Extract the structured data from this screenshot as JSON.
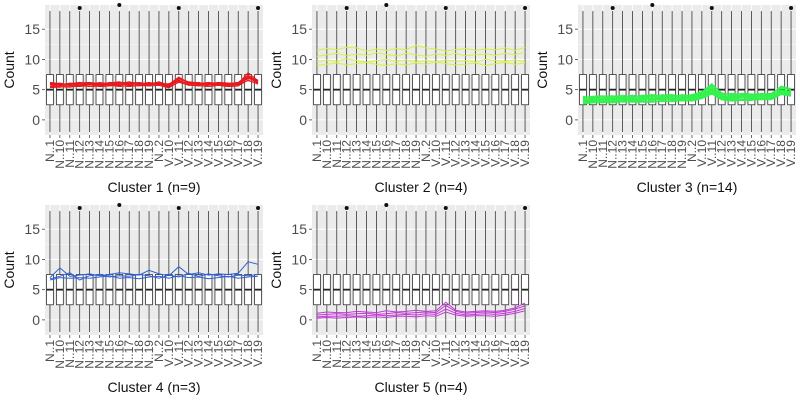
{
  "chart_data": [
    {
      "type": "box+line",
      "title": "Cluster 1 (n=9)",
      "ylabel": "Count",
      "ylim": [
        -2.5,
        19
      ],
      "yticks": [
        0,
        5,
        10,
        15
      ],
      "x_tick_labels": [
        "N..1",
        "N..10",
        "N..11",
        "N..12",
        "N..13",
        "N..14",
        "N..15",
        "N..16",
        "N..17",
        "N..18",
        "N..19",
        "N..2",
        "V..10",
        "V..11",
        "V..12",
        "V..13",
        "V..14",
        "V..15",
        "V..16",
        "V..17",
        "V..18",
        "V..19"
      ],
      "series_color": "#e8191c",
      "series": [
        {
          "values": [
            5.8,
            5.9,
            5.7,
            5.9,
            6.1,
            6.0,
            5.9,
            6.2,
            6.0,
            5.8,
            5.9,
            6.3,
            5.7,
            6.8,
            6.2,
            6.0,
            5.9,
            6.0,
            5.8,
            6.2,
            7.4,
            6.4
          ]
        },
        {
          "values": [
            5.5,
            5.6,
            5.8,
            5.6,
            5.9,
            5.7,
            6.1,
            5.8,
            6.0,
            6.2,
            5.9,
            6.0,
            5.6,
            6.5,
            6.0,
            5.8,
            6.1,
            5.9,
            6.0,
            5.7,
            7.0,
            6.1
          ]
        },
        {
          "values": [
            6.0,
            5.7,
            6.1,
            5.9,
            5.8,
            6.2,
            5.9,
            6.0,
            6.3,
            5.9,
            6.1,
            5.8,
            5.9,
            7.0,
            6.1,
            6.2,
            5.8,
            6.1,
            5.9,
            6.0,
            6.8,
            6.6
          ]
        },
        {
          "values": [
            5.3,
            5.5,
            5.4,
            5.7,
            5.5,
            5.6,
            5.8,
            5.5,
            5.7,
            5.6,
            5.8,
            5.9,
            5.4,
            6.2,
            5.8,
            5.6,
            5.7,
            5.9,
            5.6,
            5.8,
            6.5,
            6.0
          ]
        },
        {
          "values": [
            6.2,
            6.0,
            5.9,
            6.1,
            6.2,
            6.0,
            6.1,
            6.3,
            5.9,
            6.1,
            6.0,
            6.2,
            5.8,
            6.9,
            6.3,
            6.1,
            6.0,
            6.2,
            6.1,
            6.0,
            7.8,
            6.5
          ]
        },
        {
          "values": [
            5.6,
            5.8,
            5.9,
            5.7,
            6.0,
            5.9,
            5.7,
            5.9,
            5.8,
            6.0,
            5.7,
            6.1,
            5.5,
            6.6,
            5.9,
            5.9,
            5.8,
            5.8,
            5.9,
            5.9,
            7.1,
            6.3
          ]
        },
        {
          "values": [
            5.9,
            6.1,
            5.7,
            6.0,
            5.7,
            6.1,
            6.0,
            5.8,
            6.1,
            5.9,
            6.2,
            5.9,
            6.0,
            6.4,
            6.0,
            6.0,
            6.2,
            6.0,
            5.7,
            6.1,
            6.9,
            6.2
          ]
        },
        {
          "values": [
            5.4,
            5.4,
            5.6,
            5.5,
            5.8,
            5.5,
            5.6,
            5.7,
            5.5,
            5.7,
            5.6,
            5.7,
            5.3,
            6.3,
            5.7,
            5.7,
            5.5,
            5.7,
            5.5,
            5.6,
            6.6,
            5.9
          ]
        },
        {
          "values": [
            6.1,
            5.9,
            6.0,
            6.2,
            6.0,
            5.8,
            6.2,
            6.1,
            6.2,
            6.1,
            5.8,
            6.1,
            5.8,
            7.1,
            6.1,
            5.8,
            6.0,
            6.1,
            6.0,
            6.2,
            7.2,
            6.4
          ]
        }
      ]
    },
    {
      "type": "box+line",
      "title": "Cluster 2 (n=4)",
      "ylabel": "Count",
      "ylim": [
        -2.5,
        19
      ],
      "yticks": [
        0,
        5,
        10,
        15
      ],
      "x_tick_labels": [
        "N..1",
        "N..10",
        "N..11",
        "N..12",
        "N..13",
        "N..14",
        "N..15",
        "N..16",
        "N..17",
        "N..18",
        "N..19",
        "N..2",
        "V..10",
        "V..11",
        "V..12",
        "V..13",
        "V..14",
        "V..15",
        "V..16",
        "V..17",
        "V..18",
        "V..19"
      ],
      "series_color": "#d8f23a",
      "series": [
        {
          "values": [
            11.5,
            11.8,
            11.6,
            12.0,
            11.9,
            11.4,
            11.7,
            11.5,
            11.8,
            11.6,
            12.3,
            11.9,
            11.7,
            11.4,
            11.6,
            11.8,
            11.5,
            11.7,
            11.6,
            11.9,
            11.5,
            12.0
          ]
        },
        {
          "values": [
            10.5,
            10.8,
            11.0,
            10.6,
            10.9,
            10.7,
            11.1,
            10.8,
            10.6,
            11.0,
            10.8,
            10.5,
            10.9,
            10.7,
            11.0,
            10.6,
            10.8,
            10.9,
            10.7,
            11.0,
            10.8,
            11.2
          ]
        },
        {
          "values": [
            9.6,
            9.9,
            9.7,
            10.1,
            9.8,
            9.5,
            9.8,
            10.0,
            9.7,
            9.9,
            9.6,
            9.8,
            9.5,
            9.9,
            9.7,
            9.8,
            9.6,
            10.0,
            9.8,
            9.7,
            9.9,
            9.6
          ]
        },
        {
          "values": [
            9.0,
            9.2,
            9.4,
            9.1,
            9.3,
            9.5,
            9.2,
            9.0,
            9.3,
            9.1,
            9.4,
            9.2,
            9.6,
            9.3,
            9.1,
            9.2,
            9.4,
            9.0,
            9.3,
            9.5,
            9.2,
            9.4
          ]
        }
      ]
    },
    {
      "type": "box+line",
      "title": "Cluster 3 (n=14)",
      "ylabel": "Count",
      "ylim": [
        -2.5,
        19
      ],
      "yticks": [
        0,
        5,
        10,
        15
      ],
      "x_tick_labels": [
        "N..1",
        "N..10",
        "N..11",
        "N..12",
        "N..13",
        "N..14",
        "N..15",
        "N..16",
        "N..17",
        "N..18",
        "N..19",
        "N..2",
        "V..10",
        "V..11",
        "V..12",
        "V..13",
        "V..14",
        "V..15",
        "V..16",
        "V..17",
        "V..18",
        "V..19"
      ],
      "series_color": "#33f24d",
      "series": [
        {
          "values": [
            3.2,
            3.5,
            3.3,
            3.7,
            3.6,
            3.9,
            3.8,
            4.1,
            3.7,
            4.0,
            3.6,
            3.9,
            4.3,
            5.2,
            4.0,
            3.8,
            4.1,
            3.9,
            4.2,
            4.0,
            4.8,
            4.6
          ]
        },
        {
          "values": [
            2.8,
            3.0,
            3.2,
            3.0,
            3.3,
            3.1,
            3.5,
            3.2,
            3.6,
            3.3,
            3.5,
            3.4,
            3.8,
            4.6,
            3.6,
            3.4,
            3.7,
            3.5,
            3.8,
            3.6,
            4.5,
            4.2
          ]
        },
        {
          "values": [
            3.6,
            3.8,
            3.5,
            3.9,
            3.7,
            4.0,
            3.9,
            3.7,
            4.2,
            3.9,
            4.1,
            4.0,
            4.5,
            5.6,
            4.3,
            4.1,
            4.0,
            4.2,
            4.1,
            4.3,
            5.2,
            5.0
          ]
        },
        {
          "values": [
            3.0,
            3.1,
            3.4,
            3.2,
            3.0,
            3.4,
            3.2,
            3.5,
            3.3,
            3.6,
            3.4,
            3.7,
            4.0,
            4.9,
            3.8,
            3.6,
            3.9,
            3.7,
            3.9,
            3.8,
            4.7,
            4.4
          ]
        },
        {
          "values": [
            3.9,
            3.6,
            3.8,
            3.5,
            3.9,
            3.7,
            4.1,
            3.9,
            4.0,
            3.8,
            4.2,
            3.9,
            4.4,
            6.0,
            4.1,
            4.4,
            4.2,
            4.0,
            4.3,
            4.1,
            5.5,
            4.9
          ]
        },
        {
          "values": [
            3.4,
            3.3,
            3.0,
            3.4,
            3.2,
            3.5,
            3.3,
            3.6,
            3.4,
            3.7,
            3.5,
            3.6,
            4.1,
            5.0,
            3.9,
            3.7,
            3.8,
            3.9,
            3.7,
            4.0,
            4.9,
            4.5
          ]
        },
        {
          "values": [
            2.6,
            2.9,
            2.8,
            3.1,
            2.9,
            3.0,
            3.1,
            3.0,
            3.2,
            3.1,
            3.3,
            3.2,
            3.6,
            4.4,
            3.5,
            3.3,
            3.4,
            3.3,
            3.6,
            3.4,
            4.3,
            4.0
          ]
        },
        {
          "values": [
            3.7,
            3.9,
            4.0,
            3.8,
            4.1,
            3.8,
            4.0,
            4.2,
            3.9,
            4.1,
            3.9,
            4.2,
            4.6,
            5.8,
            4.4,
            4.2,
            4.3,
            4.1,
            4.4,
            4.2,
            5.6,
            5.1
          ]
        },
        {
          "values": [
            3.1,
            3.3,
            3.1,
            3.3,
            3.4,
            3.2,
            3.4,
            3.3,
            3.5,
            3.4,
            3.6,
            3.5,
            3.9,
            4.7,
            3.7,
            3.5,
            3.6,
            3.6,
            3.5,
            3.7,
            4.6,
            4.3
          ]
        },
        {
          "values": [
            3.5,
            3.4,
            3.6,
            3.6,
            3.5,
            3.6,
            3.6,
            3.8,
            3.6,
            3.5,
            3.7,
            3.8,
            4.2,
            5.4,
            4.0,
            3.9,
            4.0,
            3.8,
            4.0,
            3.9,
            5.0,
            4.7
          ]
        },
        {
          "values": [
            2.9,
            3.2,
            3.0,
            2.9,
            3.1,
            3.3,
            3.0,
            3.1,
            3.0,
            3.2,
            3.1,
            3.3,
            3.7,
            4.5,
            3.4,
            3.2,
            3.3,
            3.4,
            3.3,
            3.5,
            4.4,
            4.1
          ]
        },
        {
          "values": [
            3.8,
            3.7,
            3.9,
            4.0,
            3.8,
            4.1,
            3.7,
            4.0,
            4.1,
            4.2,
            3.8,
            4.1,
            4.7,
            5.9,
            4.5,
            4.0,
            4.4,
            4.3,
            4.2,
            4.4,
            5.4,
            5.2
          ]
        },
        {
          "values": [
            3.3,
            3.6,
            3.4,
            3.5,
            3.7,
            3.4,
            3.6,
            3.4,
            3.8,
            3.6,
            3.4,
            3.7,
            4.0,
            5.1,
            3.8,
            3.8,
            3.9,
            3.6,
            3.9,
            3.8,
            4.8,
            4.5
          ]
        },
        {
          "values": [
            2.7,
            2.8,
            2.9,
            2.8,
            3.0,
            2.9,
            2.9,
            2.9,
            3.1,
            3.0,
            3.2,
            3.1,
            3.5,
            4.3,
            3.3,
            3.1,
            3.2,
            3.2,
            3.4,
            3.3,
            4.2,
            3.9
          ]
        }
      ]
    },
    {
      "type": "box+line",
      "title": "Cluster 4 (n=3)",
      "ylabel": "Count",
      "ylim": [
        -2.5,
        19
      ],
      "yticks": [
        0,
        5,
        10,
        15
      ],
      "x_tick_labels": [
        "N..1",
        "N..10",
        "N..11",
        "N..12",
        "N..13",
        "N..14",
        "N..15",
        "N..16",
        "N..17",
        "N..18",
        "N..19",
        "N..2",
        "V..10",
        "V..11",
        "V..12",
        "V..13",
        "V..14",
        "V..15",
        "V..16",
        "V..17",
        "V..18",
        "V..19"
      ],
      "series_color": "#2e5fd9",
      "series": [
        {
          "values": [
            7.0,
            8.6,
            7.2,
            7.4,
            7.6,
            7.3,
            7.5,
            7.8,
            7.6,
            7.4,
            8.2,
            7.6,
            7.3,
            8.8,
            7.5,
            7.8,
            7.4,
            7.6,
            7.5,
            7.7,
            9.6,
            9.2
          ]
        },
        {
          "values": [
            6.8,
            7.2,
            7.8,
            6.6,
            7.3,
            7.5,
            7.1,
            7.3,
            7.2,
            7.5,
            7.3,
            6.9,
            7.4,
            7.1,
            7.7,
            7.2,
            7.6,
            7.3,
            7.1,
            7.4,
            7.3,
            7.5
          ]
        },
        {
          "values": [
            6.6,
            7.0,
            6.9,
            7.0,
            6.9,
            7.1,
            7.3,
            6.9,
            7.0,
            6.8,
            7.1,
            7.2,
            6.9,
            7.3,
            7.0,
            7.1,
            6.8,
            7.0,
            7.2,
            6.9,
            7.1,
            7.2
          ]
        }
      ]
    },
    {
      "type": "box+line",
      "title": "Cluster 5 (n=4)",
      "ylabel": "Count",
      "ylim": [
        -2.5,
        19
      ],
      "yticks": [
        0,
        5,
        10,
        15
      ],
      "x_tick_labels": [
        "N..1",
        "N..10",
        "N..11",
        "N..12",
        "N..13",
        "N..14",
        "N..15",
        "N..16",
        "N..17",
        "N..18",
        "N..19",
        "N..2",
        "V..10",
        "V..11",
        "V..12",
        "V..13",
        "V..14",
        "V..15",
        "V..16",
        "V..17",
        "V..18",
        "V..19"
      ],
      "series_color": "#c23ad6",
      "series": [
        {
          "values": [
            1.1,
            1.3,
            1.2,
            1.2,
            1.4,
            1.3,
            1.2,
            1.5,
            1.3,
            1.4,
            1.6,
            1.4,
            1.5,
            2.9,
            1.6,
            1.3,
            1.4,
            1.5,
            1.4,
            1.6,
            2.0,
            2.8
          ]
        },
        {
          "values": [
            0.8,
            0.9,
            1.0,
            0.9,
            1.0,
            1.1,
            0.9,
            1.0,
            1.2,
            1.1,
            1.2,
            1.3,
            1.2,
            2.4,
            1.4,
            1.1,
            1.2,
            1.3,
            1.2,
            1.4,
            1.8,
            2.3
          ]
        },
        {
          "values": [
            0.5,
            0.6,
            0.6,
            0.7,
            0.6,
            0.7,
            0.8,
            0.7,
            0.8,
            0.9,
            0.8,
            1.0,
            0.9,
            1.8,
            1.1,
            0.8,
            0.9,
            1.0,
            0.9,
            1.1,
            1.4,
            1.9
          ]
        },
        {
          "values": [
            0.3,
            0.4,
            0.3,
            0.4,
            0.5,
            0.4,
            0.5,
            0.4,
            0.6,
            0.6,
            0.5,
            0.7,
            0.6,
            1.3,
            0.8,
            0.6,
            0.7,
            0.7,
            0.6,
            0.8,
            1.1,
            1.5
          ]
        }
      ]
    }
  ],
  "boxplot_summary": {
    "whisker_low": -2.0,
    "q1": 2.5,
    "median": 5.0,
    "q3": 7.5,
    "whisker_high": 18.0,
    "outliers": [
      {
        "category_index": 3,
        "value": 18.5
      },
      {
        "category_index": 13,
        "value": 18.5
      },
      {
        "category_index": 21,
        "value": 18.5
      },
      {
        "category_index": 7,
        "value": 19.0
      }
    ]
  },
  "style": {
    "panel_background": "#ebebeb",
    "grid_major": "#ffffff",
    "box_fill": "#ffffff",
    "box_stroke": "#333333",
    "median_color": "#222222",
    "outlier_color": "#111111"
  }
}
